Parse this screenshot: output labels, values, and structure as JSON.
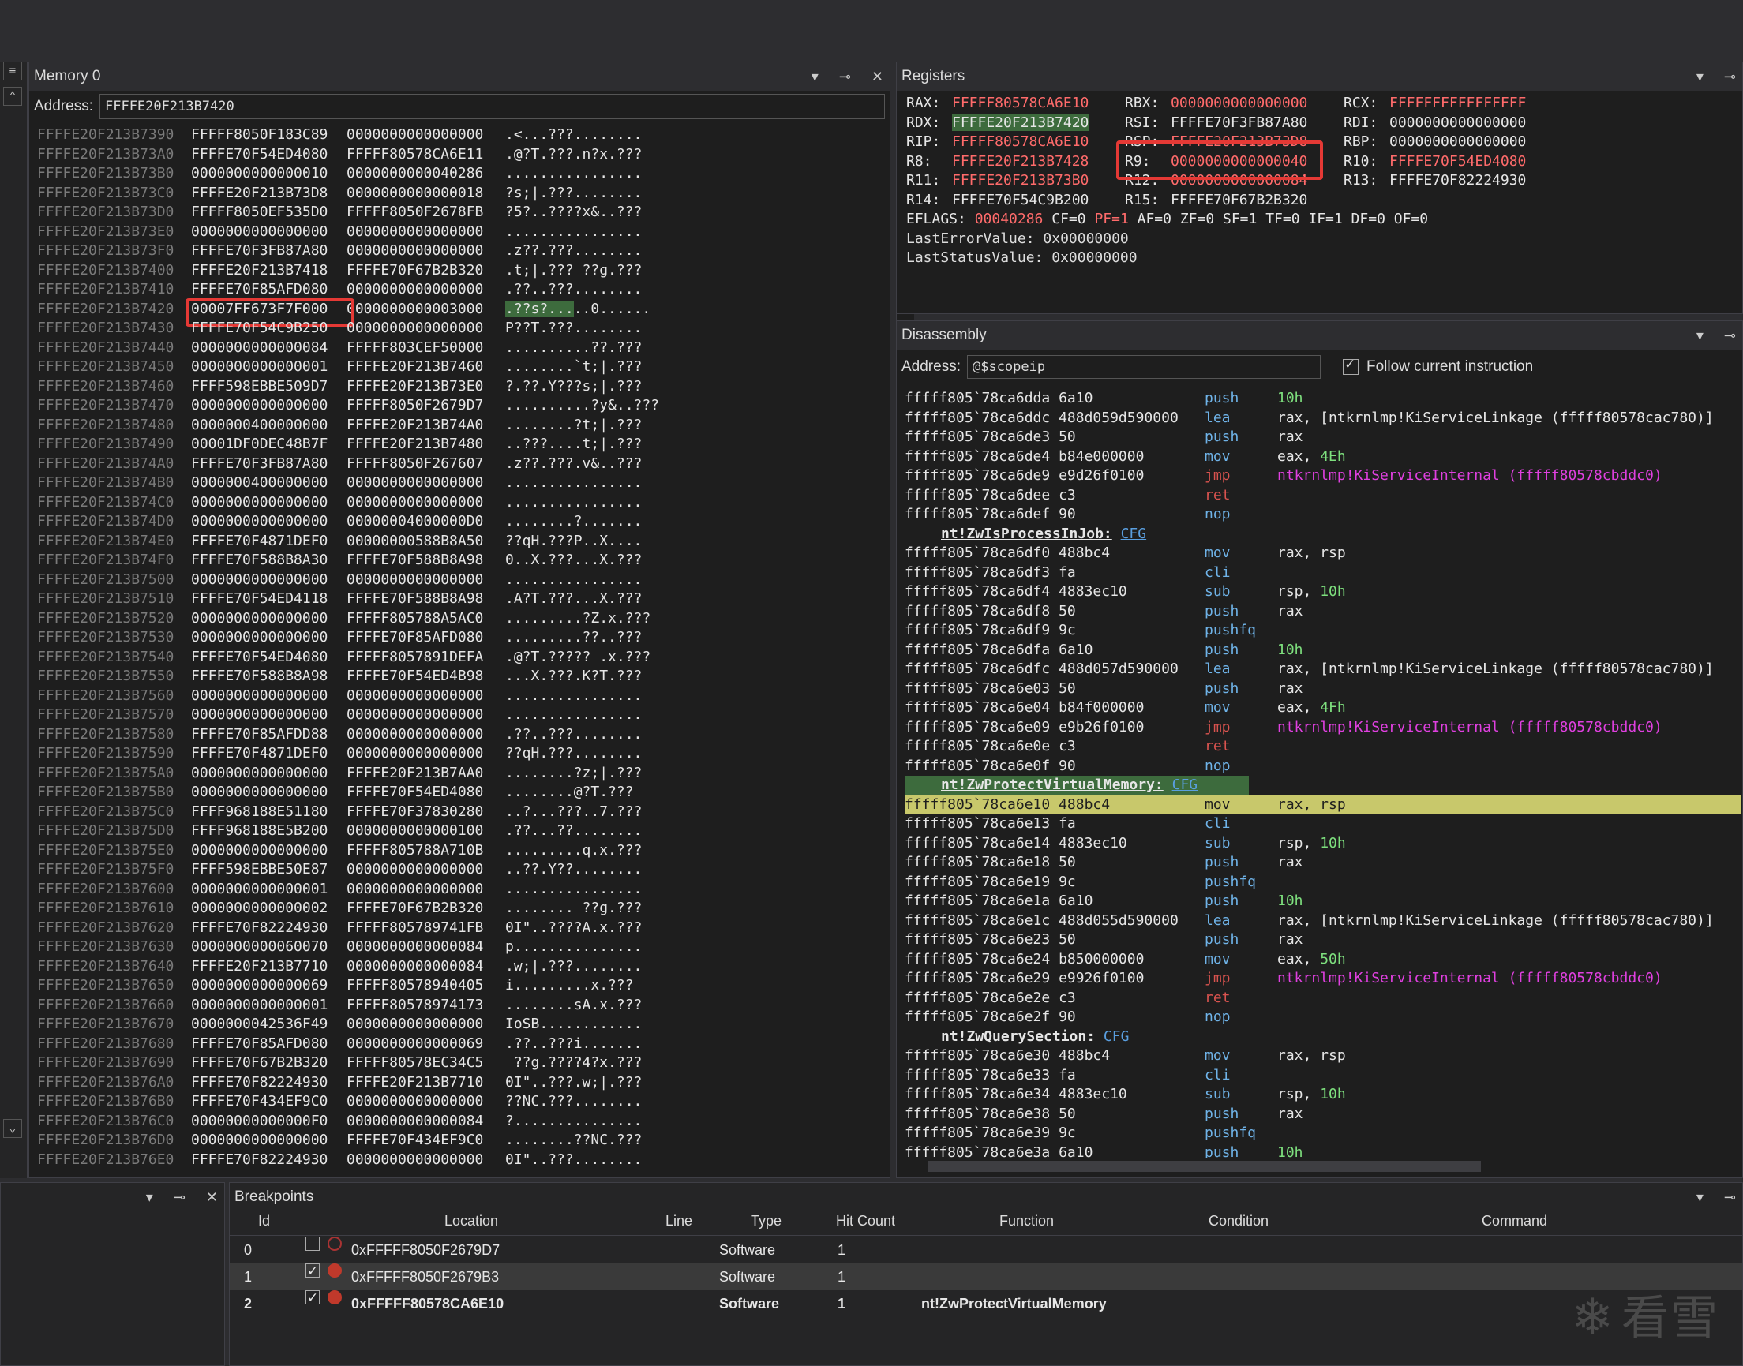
{
  "memory": {
    "title": "Memory 0",
    "address_label": "Address:",
    "address_value": "FFFFE20F213B7420",
    "rows": [
      [
        "FFFFE20F213B7390",
        "FFFFF8050F183C89",
        "0000000000000000",
        ".<...???........"
      ],
      [
        "FFFFE20F213B73A0",
        "FFFFE70F54ED4080",
        "FFFFF80578CA6E11",
        ".@?T.???.n?x.???"
      ],
      [
        "FFFFE20F213B73B0",
        "0000000000000010",
        "0000000000040286",
        "................"
      ],
      [
        "FFFFE20F213B73C0",
        "FFFFE20F213B73D8",
        "0000000000000018",
        "?s;|.???........"
      ],
      [
        "FFFFE20F213B73D0",
        "FFFFF8050EF535D0",
        "FFFFF8050F2678FB",
        "?5?..????x&..???"
      ],
      [
        "FFFFE20F213B73E0",
        "0000000000000000",
        "0000000000000000",
        "................"
      ],
      [
        "FFFFE20F213B73F0",
        "FFFFE70F3FB87A80",
        "0000000000000000",
        ".z??.???........"
      ],
      [
        "FFFFE20F213B7400",
        "FFFFE20F213B7418",
        "FFFFE70F67B2B320",
        ".t;|.??? ??g.???"
      ],
      [
        "FFFFE20F213B7410",
        "FFFFE70F85AFD080",
        "0000000000000000",
        ".??..???........"
      ],
      [
        "FFFFE20F213B7420",
        "00007FF673F7F000",
        "0000000000003000",
        ".??s?...",
        "..0......"
      ],
      [
        "FFFFE20F213B7430",
        "FFFFE70F54C9B250",
        "0000000000000000",
        "P??T.???........"
      ],
      [
        "FFFFE20F213B7440",
        "0000000000000084",
        "FFFFF803CEF50000",
        "..........??.???"
      ],
      [
        "FFFFE20F213B7450",
        "0000000000000001",
        "FFFFE20F213B7460",
        "........`t;|.???"
      ],
      [
        "FFFFE20F213B7460",
        "FFFF598EBBE509D7",
        "FFFFE20F213B73E0",
        "?.??.Y???s;|.???"
      ],
      [
        "FFFFE20F213B7470",
        "0000000000000000",
        "FFFFF8050F2679D7",
        "..........?y&..???"
      ],
      [
        "FFFFE20F213B7480",
        "0000000400000000",
        "FFFFE20F213B74A0",
        "........?t;|.???"
      ],
      [
        "FFFFE20F213B7490",
        "00001DF0DEC48B7F",
        "FFFFE20F213B7480",
        "..???....t;|.???"
      ],
      [
        "FFFFE20F213B74A0",
        "FFFFE70F3FB87A80",
        "FFFFF8050F267607",
        ".z??.???.v&..???"
      ],
      [
        "FFFFE20F213B74B0",
        "0000000400000000",
        "0000000000000000",
        "................"
      ],
      [
        "FFFFE20F213B74C0",
        "0000000000000000",
        "0000000000000000",
        "................"
      ],
      [
        "FFFFE20F213B74D0",
        "0000000000000000",
        "00000004000000D0",
        "........?......."
      ],
      [
        "FFFFE20F213B74E0",
        "FFFFE70F4871DEF0",
        "00000000588B8A50",
        "??qH.???P..X...."
      ],
      [
        "FFFFE20F213B74F0",
        "FFFFE70F588B8A30",
        "FFFFE70F588B8A98",
        "0..X.???...X.???"
      ],
      [
        "FFFFE20F213B7500",
        "0000000000000000",
        "0000000000000000",
        "................"
      ],
      [
        "FFFFE20F213B7510",
        "FFFFE70F54ED4118",
        "FFFFE70F588B8A98",
        ".A?T.???...X.???"
      ],
      [
        "FFFFE20F213B7520",
        "0000000000000000",
        "FFFFF805788A5AC0",
        ".........?Z.x.???"
      ],
      [
        "FFFFE20F213B7530",
        "0000000000000000",
        "FFFFE70F85AFD080",
        ".........??..???"
      ],
      [
        "FFFFE20F213B7540",
        "FFFFE70F54ED4080",
        "FFFFF8057891DEFA",
        ".@?T.????? .x.???"
      ],
      [
        "FFFFE20F213B7550",
        "FFFFE70F588B8A98",
        "FFFFE70F54ED4B98",
        "...X.???.K?T.???"
      ],
      [
        "FFFFE20F213B7560",
        "0000000000000000",
        "0000000000000000",
        "................"
      ],
      [
        "FFFFE20F213B7570",
        "0000000000000000",
        "0000000000000000",
        "................"
      ],
      [
        "FFFFE20F213B7580",
        "FFFFE70F85AFDD88",
        "0000000000000000",
        ".??..???........"
      ],
      [
        "FFFFE20F213B7590",
        "FFFFE70F4871DEF0",
        "0000000000000000",
        "??qH.???........"
      ],
      [
        "FFFFE20F213B75A0",
        "0000000000000000",
        "FFFFE20F213B7AA0",
        "........?z;|.???"
      ],
      [
        "FFFFE20F213B75B0",
        "0000000000000000",
        "FFFFE70F54ED4080",
        "........@?T.???"
      ],
      [
        "FFFFE20F213B75C0",
        "FFFF968188E51180",
        "FFFFE70F37830280",
        "..?...???..7.???"
      ],
      [
        "FFFFE20F213B75D0",
        "FFFF968188E5B200",
        "0000000000000100",
        ".??...??........"
      ],
      [
        "FFFFE20F213B75E0",
        "0000000000000000",
        "FFFFF805788A710B",
        ".........q.x.???"
      ],
      [
        "FFFFE20F213B75F0",
        "FFFF598EBBE50E87",
        "0000000000000000",
        "..??.Y??........"
      ],
      [
        "FFFFE20F213B7600",
        "0000000000000001",
        "0000000000000000",
        "................"
      ],
      [
        "FFFFE20F213B7610",
        "0000000000000002",
        "FFFFE70F67B2B320",
        "........ ??g.???"
      ],
      [
        "FFFFE20F213B7620",
        "FFFFE70F82224930",
        "FFFFF805789741FB",
        "0I\"..????A.x.???"
      ],
      [
        "FFFFE20F213B7630",
        "0000000000060070",
        "0000000000000084",
        "p..............."
      ],
      [
        "FFFFE20F213B7640",
        "FFFFE20F213B7710",
        "0000000000000084",
        ".w;|.???........"
      ],
      [
        "FFFFE20F213B7650",
        "0000000000000069",
        "FFFFF80578940405",
        "i.........x.???"
      ],
      [
        "FFFFE20F213B7660",
        "0000000000000001",
        "FFFFF80578974173",
        "........sA.x.???"
      ],
      [
        "FFFFE20F213B7670",
        "0000000042536F49",
        "0000000000000000",
        "IoSB............"
      ],
      [
        "FFFFE20F213B7680",
        "FFFFE70F85AFD080",
        "0000000000000069",
        ".??..???i......."
      ],
      [
        "FFFFE20F213B7690",
        "FFFFE70F67B2B320",
        "FFFFF80578EC34C5",
        " ??g.????4?x.???"
      ],
      [
        "FFFFE20F213B76A0",
        "FFFFE70F82224930",
        "FFFFE20F213B7710",
        "0I\"..???.w;|.???"
      ],
      [
        "FFFFE20F213B76B0",
        "FFFFE70F434EF9C0",
        "0000000000000000",
        "??NC.???........"
      ],
      [
        "FFFFE20F213B76C0",
        "00000000000000F0",
        "0000000000000084",
        "?..............."
      ],
      [
        "FFFFE20F213B76D0",
        "0000000000000000",
        "FFFFE70F434EF9C0",
        "........??NC.???"
      ],
      [
        "FFFFE20F213B76E0",
        "FFFFE70F82224930",
        "0000000000000000",
        "0I\"..???........"
      ]
    ]
  },
  "registers": {
    "title": "Registers",
    "rows": [
      [
        [
          "RAX:",
          "FFFFF80578CA6E10",
          "c"
        ],
        [
          "RBX:",
          "0000000000000000",
          "c"
        ],
        [
          "RCX:",
          "FFFFFFFFFFFFFFFF",
          "c"
        ]
      ],
      [
        [
          "RDX:",
          "FFFFE20F213B7420",
          "s"
        ],
        [
          "RSI:",
          "FFFFE70F3FB87A80",
          "n"
        ],
        [
          "RDI:",
          "0000000000000000",
          "n"
        ]
      ],
      [
        [
          "RIP:",
          "FFFFF80578CA6E10",
          "c"
        ],
        [
          "RSP:",
          "FFFFE20F213B73D8",
          "c"
        ],
        [
          "RBP:",
          "0000000000000000",
          "n"
        ]
      ],
      [
        [
          "R8:",
          "FFFFE20F213B7428",
          "c"
        ],
        [
          "R9:",
          "0000000000000040",
          "c"
        ],
        [
          "R10:",
          "FFFFE70F54ED4080",
          "c"
        ]
      ],
      [
        [
          "R11:",
          "FFFFE20F213B73B0",
          "c"
        ],
        [
          "R12:",
          "0000000000000084",
          "c"
        ],
        [
          "R13:",
          "FFFFE70F82224930",
          "n"
        ]
      ],
      [
        [
          "R14:",
          "FFFFE70F54C9B200",
          "n"
        ],
        [
          "R15:",
          "FFFFE70F67B2B320",
          "n"
        ]
      ]
    ],
    "eflags_label": "EFLAGS:",
    "eflags_value": "00040286",
    "flags_changed": "CF=0 PF=1",
    "flags_rest": "AF=0 ZF=0 SF=1 TF=0 IF=1 DF=0 OF=0",
    "last_error": "LastErrorValue: 0x00000000",
    "last_status": "LastStatusValue: 0x00000000"
  },
  "disassembly": {
    "title": "Disassembly",
    "address_label": "Address:",
    "address_value": "@$scopeip",
    "follow_label": "Follow current instruction",
    "rows": [
      {
        "a": "fffff805`78ca6dda 6a10",
        "m": "push",
        "o": "10h",
        "ot": "num"
      },
      {
        "a": "fffff805`78ca6ddc 488d059d590000",
        "m": "lea",
        "o": "rax, [ntkrnlmp!KiServiceLinkage (fffff80578cac780)]"
      },
      {
        "a": "fffff805`78ca6de3 50",
        "m": "push",
        "o": "rax"
      },
      {
        "a": "fffff805`78ca6de4 b84e000000",
        "m": "mov",
        "o": "eax, ",
        "n": "4Eh"
      },
      {
        "a": "fffff805`78ca6de9 e9d26f0100",
        "m": "jmp",
        "o": "ntkrnlmp!KiServiceInternal (fffff80578cbddc0)",
        "ot": "sym"
      },
      {
        "a": "fffff805`78ca6dee c3",
        "m": "ret",
        "o": ""
      },
      {
        "a": "fffff805`78ca6def 90",
        "m": "nop",
        "o": ""
      },
      {
        "label": "nt!ZwIsProcessInJob:",
        "cfg": "CFG"
      },
      {
        "a": "fffff805`78ca6df0 488bc4",
        "m": "mov",
        "o": "rax, rsp"
      },
      {
        "a": "fffff805`78ca6df3 fa",
        "m": "cli",
        "o": ""
      },
      {
        "a": "fffff805`78ca6df4 4883ec10",
        "m": "sub",
        "o": "rsp, ",
        "n": "10h"
      },
      {
        "a": "fffff805`78ca6df8 50",
        "m": "push",
        "o": "rax"
      },
      {
        "a": "fffff805`78ca6df9 9c",
        "m": "pushfq",
        "o": ""
      },
      {
        "a": "fffff805`78ca6dfa 6a10",
        "m": "push",
        "o": "10h",
        "ot": "num"
      },
      {
        "a": "fffff805`78ca6dfc 488d057d590000",
        "m": "lea",
        "o": "rax, [ntkrnlmp!KiServiceLinkage (fffff80578cac780)]"
      },
      {
        "a": "fffff805`78ca6e03 50",
        "m": "push",
        "o": "rax"
      },
      {
        "a": "fffff805`78ca6e04 b84f000000",
        "m": "mov",
        "o": "eax, ",
        "n": "4Fh"
      },
      {
        "a": "fffff805`78ca6e09 e9b26f0100",
        "m": "jmp",
        "o": "ntkrnlmp!KiServiceInternal (fffff80578cbddc0)",
        "ot": "sym"
      },
      {
        "a": "fffff805`78ca6e0e c3",
        "m": "ret",
        "o": ""
      },
      {
        "a": "fffff805`78ca6e0f 90",
        "m": "nop",
        "o": ""
      },
      {
        "label": "nt!ZwProtectVirtualMemory:",
        "cfg": "CFG",
        "hl": true
      },
      {
        "a": "fffff805`78ca6e10 488bc4",
        "m": "mov",
        "o": "rax, rsp",
        "cur": true
      },
      {
        "a": "fffff805`78ca6e13 fa",
        "m": "cli",
        "o": ""
      },
      {
        "a": "fffff805`78ca6e14 4883ec10",
        "m": "sub",
        "o": "rsp, ",
        "n": "10h"
      },
      {
        "a": "fffff805`78ca6e18 50",
        "m": "push",
        "o": "rax"
      },
      {
        "a": "fffff805`78ca6e19 9c",
        "m": "pushfq",
        "o": ""
      },
      {
        "a": "fffff805`78ca6e1a 6a10",
        "m": "push",
        "o": "10h",
        "ot": "num"
      },
      {
        "a": "fffff805`78ca6e1c 488d055d590000",
        "m": "lea",
        "o": "rax, [ntkrnlmp!KiServiceLinkage (fffff80578cac780)]"
      },
      {
        "a": "fffff805`78ca6e23 50",
        "m": "push",
        "o": "rax"
      },
      {
        "a": "fffff805`78ca6e24 b850000000",
        "m": "mov",
        "o": "eax, ",
        "n": "50h"
      },
      {
        "a": "fffff805`78ca6e29 e9926f0100",
        "m": "jmp",
        "o": "ntkrnlmp!KiServiceInternal (fffff80578cbddc0)",
        "ot": "sym"
      },
      {
        "a": "fffff805`78ca6e2e c3",
        "m": "ret",
        "o": ""
      },
      {
        "a": "fffff805`78ca6e2f 90",
        "m": "nop",
        "o": ""
      },
      {
        "label": "nt!ZwQuerySection:",
        "cfg": "CFG"
      },
      {
        "a": "fffff805`78ca6e30 488bc4",
        "m": "mov",
        "o": "rax, rsp"
      },
      {
        "a": "fffff805`78ca6e33 fa",
        "m": "cli",
        "o": ""
      },
      {
        "a": "fffff805`78ca6e34 4883ec10",
        "m": "sub",
        "o": "rsp, ",
        "n": "10h"
      },
      {
        "a": "fffff805`78ca6e38 50",
        "m": "push",
        "o": "rax"
      },
      {
        "a": "fffff805`78ca6e39 9c",
        "m": "pushfq",
        "o": ""
      },
      {
        "a": "fffff805`78ca6e3a 6a10",
        "m": "push",
        "o": "10h",
        "ot": "num"
      }
    ]
  },
  "breakpoints": {
    "title": "Breakpoints",
    "headers": [
      "Id",
      "Location",
      "Line",
      "Type",
      "Hit Count",
      "Function",
      "Condition",
      "Command"
    ],
    "rows": [
      {
        "id": "0",
        "checked": false,
        "location": "0xFFFFF8050F2679D7",
        "line": "",
        "type": "Software",
        "hits": "1",
        "function": ""
      },
      {
        "id": "1",
        "checked": true,
        "location": "0xFFFFF8050F2679B3",
        "line": "",
        "type": "Software",
        "hits": "1",
        "function": ""
      },
      {
        "id": "2",
        "checked": true,
        "location": "0xFFFFF80578CA6E10",
        "line": "",
        "type": "Software",
        "hits": "1",
        "function": "nt!ZwProtectVirtualMemory"
      }
    ]
  },
  "watermark": "看雪",
  "colors": {
    "changed": "#ff6b6b",
    "current_line": "#c8c86b",
    "selection": "#3d6b3d",
    "highlight_box": "#e53935"
  }
}
